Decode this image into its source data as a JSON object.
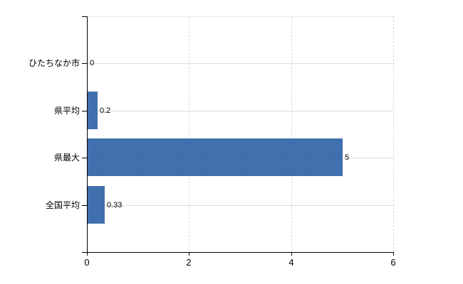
{
  "chart_data": {
    "type": "bar",
    "orientation": "horizontal",
    "title": "",
    "xlabel": "",
    "ylabel": "",
    "categories": [
      "ひたちなか市",
      "県平均",
      "県最大",
      "全国平均"
    ],
    "values": [
      0,
      0.2,
      5,
      0.33
    ],
    "value_labels": [
      "0",
      "0.2",
      "5",
      "0.33"
    ],
    "x_ticks": [
      0,
      2,
      4,
      6
    ],
    "x_tick_labels": [
      "0",
      "2",
      "4",
      "6"
    ],
    "xlim": [
      0,
      6
    ],
    "grid": true,
    "legend": false,
    "colors": {
      "bar": "#3e6fad",
      "bar_dither_dark": "#33639f",
      "bar_dither_light": "#4c7cba",
      "horizontal_grid": "#d7e0d5",
      "vertical_grid": "#ded6dc",
      "axis": "#000000",
      "text": "#000000",
      "background": "#ffffff"
    }
  }
}
